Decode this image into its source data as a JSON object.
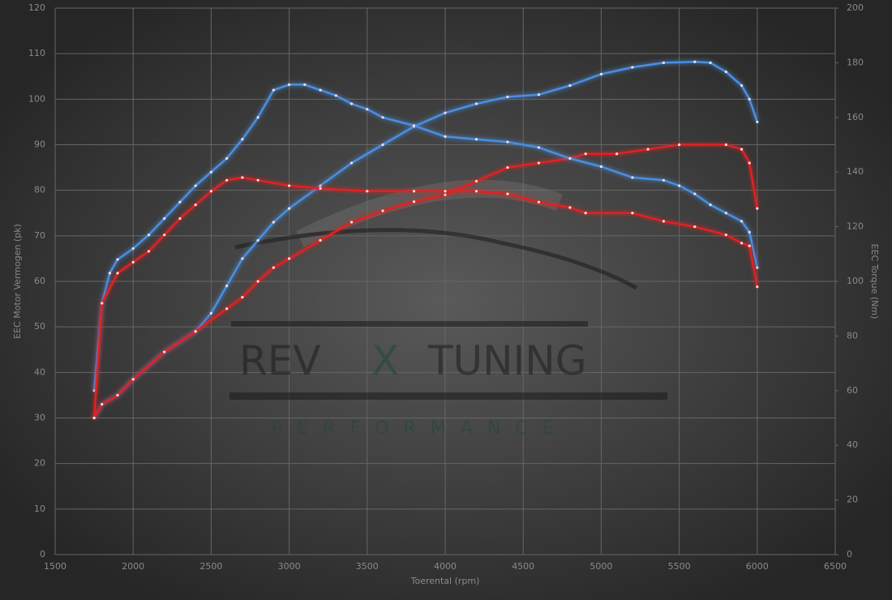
{
  "chart_data": {
    "type": "line",
    "y_label": "EEC Motor Vermogen (pk)",
    "y2_label": "EEC Torque (Nm)",
    "x_label": "Toerental (rpm)",
    "watermark": {
      "word1": "REV",
      "mark": "X",
      "word2": "TUNING",
      "subtitle": "PERFORMANCE"
    },
    "xlim": [
      1500,
      6500
    ],
    "xticks": [
      1500,
      2000,
      2500,
      3000,
      3500,
      4000,
      4500,
      5000,
      5500,
      6000,
      6500
    ],
    "ylim": [
      0,
      120
    ],
    "yticks": [
      0,
      10,
      20,
      30,
      40,
      50,
      60,
      70,
      80,
      90,
      100,
      110,
      120
    ],
    "y2lim": [
      0,
      200
    ],
    "y2ticks": [
      0,
      20,
      40,
      60,
      80,
      100,
      120,
      140,
      160,
      180,
      200
    ],
    "grid": true,
    "series": [
      {
        "color": "#4a8fe0",
        "axis": "y",
        "x": [
          1750,
          1800,
          1900,
          2000,
          2200,
          2400,
          2500,
          2600,
          2700,
          2800,
          2900,
          3000,
          3200,
          3400,
          3600,
          3800,
          4000,
          4200,
          4400,
          4600,
          4800,
          5000,
          5200,
          5400,
          5600,
          5700,
          5800,
          5900,
          5950,
          6000
        ],
        "values": [
          30,
          33,
          35,
          38.5,
          44.5,
          49,
          53,
          59,
          65,
          69,
          73,
          76,
          81,
          86,
          90,
          94,
          97,
          99,
          100.5,
          101,
          103,
          105.5,
          107,
          108,
          108.2,
          108,
          106,
          103,
          100,
          95
        ]
      },
      {
        "color": "#e02424",
        "axis": "y",
        "x": [
          1750,
          1800,
          1900,
          2000,
          2200,
          2400,
          2600,
          2700,
          2800,
          2900,
          3000,
          3200,
          3400,
          3600,
          3800,
          4000,
          4200,
          4400,
          4600,
          4800,
          4900,
          5100,
          5300,
          5500,
          5800,
          5900,
          5950,
          6000
        ],
        "values": [
          30,
          33,
          35,
          38.5,
          44.5,
          49,
          54,
          56.5,
          60,
          63,
          65,
          69,
          73,
          75.5,
          77.5,
          79,
          82,
          85,
          86,
          87,
          88,
          88,
          89,
          90,
          90,
          89,
          86,
          76
        ]
      },
      {
        "color": "#4a8fe0",
        "axis": "y2",
        "x": [
          1750,
          1800,
          1850,
          1900,
          2000,
          2100,
          2200,
          2300,
          2400,
          2500,
          2600,
          2700,
          2800,
          2900,
          3000,
          3100,
          3200,
          3300,
          3400,
          3500,
          3600,
          3800,
          4000,
          4200,
          4400,
          4600,
          4800,
          5000,
          5200,
          5400,
          5500,
          5600,
          5700,
          5800,
          5900,
          5950,
          6000
        ],
        "values": [
          60,
          92,
          103,
          108,
          112,
          117,
          123,
          129,
          135,
          140,
          145,
          152,
          160,
          170,
          172,
          172,
          170,
          168,
          165,
          163,
          160,
          157,
          153,
          152,
          151,
          149,
          145,
          142,
          138,
          137,
          135,
          132,
          128,
          125,
          122,
          118,
          105
        ]
      },
      {
        "color": "#e02424",
        "axis": "y2",
        "x": [
          1750,
          1800,
          1900,
          2000,
          2100,
          2200,
          2300,
          2400,
          2500,
          2600,
          2700,
          2800,
          3000,
          3200,
          3500,
          3800,
          4000,
          4200,
          4400,
          4600,
          4800,
          4900,
          5200,
          5400,
          5600,
          5800,
          5900,
          5950,
          6000
        ],
        "values": [
          50,
          92,
          103,
          107,
          111,
          117,
          123,
          128,
          133,
          137,
          138,
          137,
          135,
          134,
          133,
          133,
          133,
          133,
          132,
          129,
          127,
          125,
          125,
          122,
          120,
          117,
          114,
          113,
          98
        ]
      }
    ]
  }
}
